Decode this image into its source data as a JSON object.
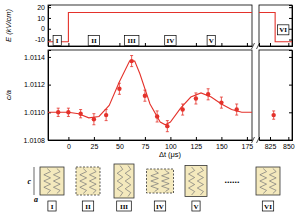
{
  "chart_data": [
    {
      "type": "line",
      "y_label": "E (kV/cm)",
      "xlim": [
        -20,
        180
      ],
      "xticks": [
        0,
        25,
        50,
        75,
        100,
        125,
        150,
        175
      ],
      "ylim": [
        -16,
        22
      ],
      "yticks": [
        -10,
        0,
        10,
        20
      ],
      "tick_labels": "y",
      "series": [
        {
          "color": "#e4322b",
          "x": [
            -20,
            0,
            0,
            180
          ],
          "values": [
            -12,
            -12,
            15,
            15
          ]
        }
      ],
      "annotations": [
        {
          "text": "I",
          "x": -11,
          "y": -11
        },
        {
          "text": "II",
          "x": 25,
          "y": -11
        },
        {
          "text": "III",
          "x": 62,
          "y": -11
        },
        {
          "text": "IV",
          "x": 100,
          "y": -11
        },
        {
          "text": "V",
          "x": 140,
          "y": -11
        }
      ]
    },
    {
      "type": "line",
      "xlim": [
        810,
        855
      ],
      "xticks": [
        825,
        850
      ],
      "ylim": [
        -16,
        22
      ],
      "yticks": [
        -10,
        0,
        10,
        20
      ],
      "tick_labels": false,
      "series": [
        {
          "color": "#e4322b",
          "x": [
            810,
            832,
            832,
            855
          ],
          "values": [
            15,
            15,
            -12,
            -12
          ]
        }
      ],
      "annotations": [
        {
          "text": "VI",
          "x": 843,
          "y": -1
        }
      ]
    },
    {
      "type": "scatter",
      "x_label": "Δt (μs)",
      "y_label": "c/a",
      "xlim": [
        -20,
        180
      ],
      "xticks": [
        0,
        25,
        50,
        75,
        100,
        125,
        150,
        175
      ],
      "ylim": [
        1.0108,
        1.01145
      ],
      "yticks": [
        1.0108,
        {
          "value": 1.011,
          "label": "1.0110"
        },
        1.0112,
        1.0114
      ],
      "series": [
        {
          "type": "line",
          "color": "#e4322b",
          "x": [
            -20,
            0,
            10,
            20,
            30,
            40,
            50,
            60,
            65,
            70,
            80,
            90,
            95,
            100,
            110,
            120,
            130,
            140,
            150,
            160,
            170,
            180
          ],
          "values": [
            1.011,
            1.011,
            1.01099,
            1.01096,
            1.01097,
            1.01105,
            1.01122,
            1.01137,
            1.01137,
            1.01128,
            1.01106,
            1.01093,
            1.01091,
            1.01093,
            1.01103,
            1.01111,
            1.01114,
            1.01111,
            1.01106,
            1.01102,
            1.011,
            1.011
          ]
        },
        {
          "type": "scatter",
          "color": "#e4322b",
          "marker": "circle",
          "x": [
            -10,
            0,
            12,
            25,
            37,
            50,
            62,
            75,
            87,
            97,
            112,
            125,
            137,
            150,
            165
          ],
          "values": [
            1.011,
            1.011,
            1.01099,
            1.01095,
            1.01098,
            1.01117,
            1.01137,
            1.01112,
            1.01097,
            1.0109,
            1.01102,
            1.0111,
            1.01113,
            1.01107,
            1.01102
          ],
          "errors": [
            3e-05,
            3e-05,
            3e-05,
            4e-05,
            4e-05,
            4e-05,
            4e-05,
            4e-05,
            4e-05,
            4e-05,
            4e-05,
            4e-05,
            4e-05,
            4e-05,
            4e-05
          ]
        }
      ]
    },
    {
      "type": "scatter",
      "xlim": [
        810,
        855
      ],
      "xticks": [
        825,
        850
      ],
      "ylim": [
        1.0108,
        1.01145
      ],
      "yticks": [
        1.0108,
        {
          "value": 1.011,
          "label": "1.0110"
        },
        1.0112,
        1.0114
      ],
      "tick_labels": "x",
      "series": [
        {
          "type": "scatter",
          "color": "#e4322b",
          "marker": "circle",
          "x": [
            830
          ],
          "values": [
            1.01098
          ],
          "errors": [
            3e-05
          ]
        }
      ]
    }
  ],
  "diagram": {
    "labels": [
      "I",
      "II",
      "III",
      "IV",
      "V",
      "VI"
    ],
    "c_label": "c",
    "a_label": "a",
    "ellipsis": "......"
  }
}
